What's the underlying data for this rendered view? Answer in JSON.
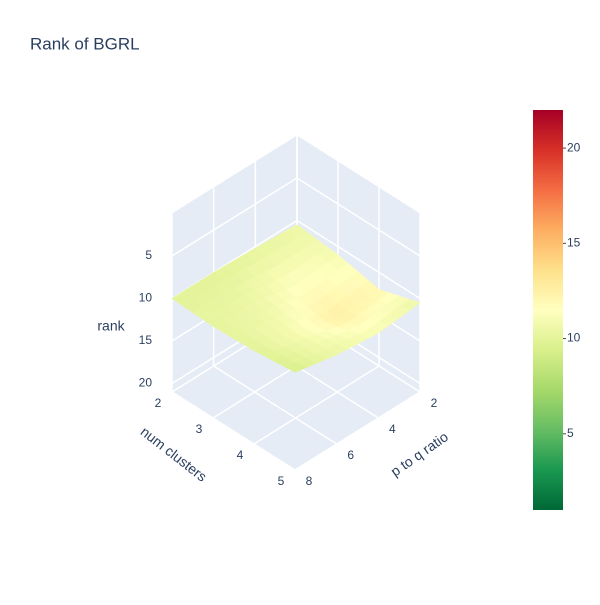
{
  "chart_data": {
    "type": "surface",
    "title": "Rank of BGRL",
    "x": [
      2,
      3,
      4,
      5
    ],
    "y": [
      2,
      4,
      6,
      8
    ],
    "z": [
      [
        10.5,
        10.2,
        10.0,
        10.0
      ],
      [
        11.0,
        11.5,
        10.5,
        10.2
      ],
      [
        12.0,
        12.5,
        11.0,
        10.0
      ],
      [
        10.5,
        11.0,
        10.5,
        9.5
      ]
    ],
    "xlabel": "num clusters",
    "ylabel": "p to q ratio",
    "zlabel": "rank",
    "xlim": [
      2,
      5
    ],
    "ylim": [
      2,
      8
    ],
    "zlim": [
      0,
      21
    ],
    "z_reversed": true,
    "xticks": [
      2,
      3,
      4,
      5
    ],
    "yticks": [
      2,
      4,
      6,
      8
    ],
    "zticks": [
      5,
      10,
      15,
      20
    ],
    "colorscale": [
      [
        0,
        "#006837"
      ],
      [
        0.1,
        "#1a9850"
      ],
      [
        0.2,
        "#66bd63"
      ],
      [
        0.3,
        "#a6d96a"
      ],
      [
        0.4,
        "#d9ef8b"
      ],
      [
        0.5,
        "#ffffbf"
      ],
      [
        0.6,
        "#fee08b"
      ],
      [
        0.7,
        "#fdae61"
      ],
      [
        0.8,
        "#f46d43"
      ],
      [
        0.9,
        "#d73027"
      ],
      [
        1,
        "#a50026"
      ]
    ],
    "clim": [
      1,
      22
    ],
    "cticks": [
      5,
      10,
      15,
      20
    ]
  }
}
